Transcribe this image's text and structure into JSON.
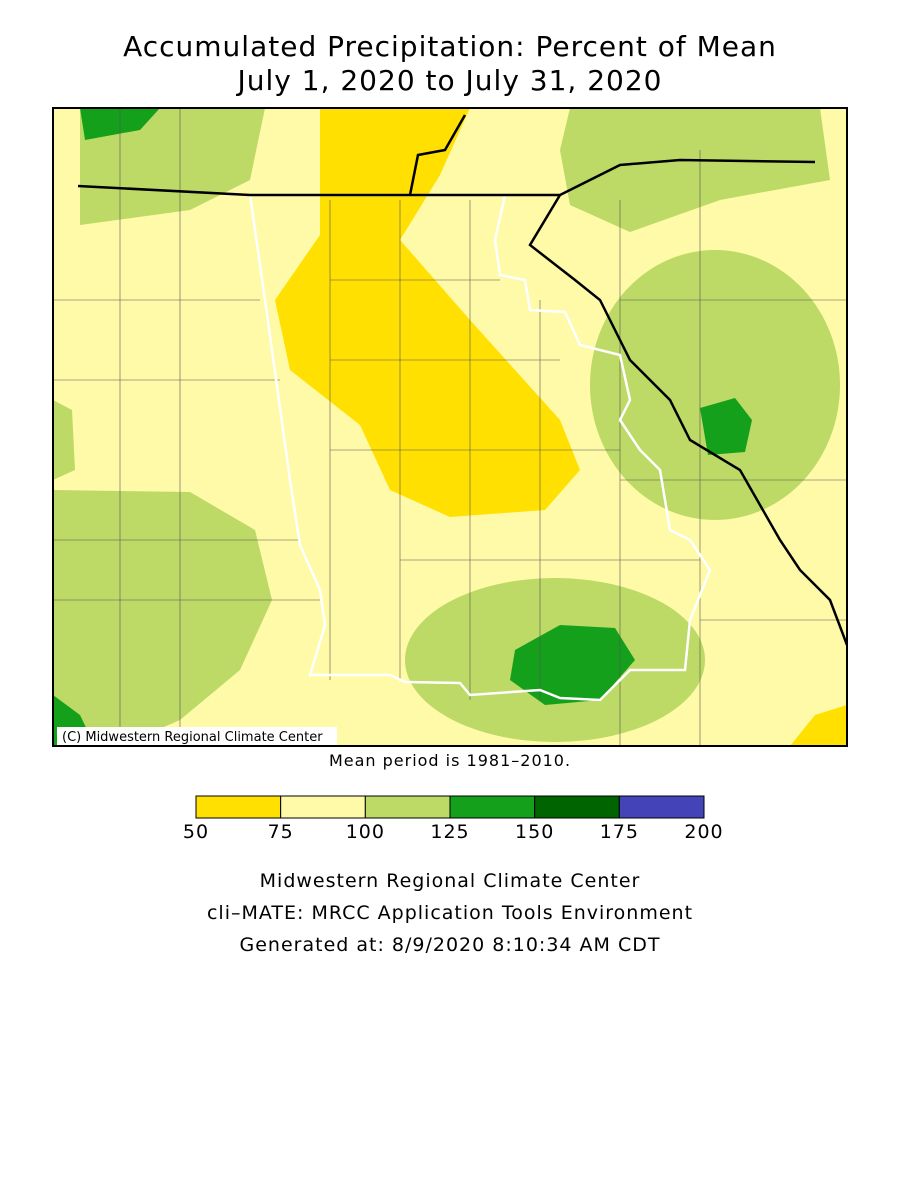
{
  "title": [
    "Accumulated Precipitation: Percent of Mean",
    "July 1, 2020 to July 31, 2020"
  ],
  "map": {
    "credit": "(C) Midwestern Regional Climate Center"
  },
  "note": "Mean period is 1981–2010.",
  "legend": {
    "bins": [
      50,
      75,
      100,
      125,
      150,
      175,
      200
    ],
    "colors": [
      "#ffe000",
      "#fffaa8",
      "#bdd966",
      "#15a01b",
      "#006400",
      "#4444b8"
    ]
  },
  "footer": [
    "Midwestern Regional Climate Center",
    "cli–MATE: MRCC Application Tools Environment",
    "Generated at: 8/9/2020 8:10:34 AM CDT"
  ]
}
